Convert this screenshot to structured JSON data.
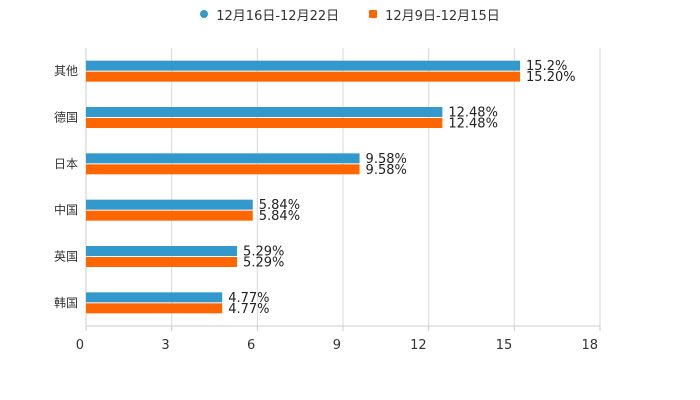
{
  "chart_data": {
    "type": "bar",
    "orientation": "horizontal",
    "categories": [
      "其他",
      "德国",
      "日本",
      "中国",
      "英国",
      "韩国"
    ],
    "series": [
      {
        "name": "12月16日-12月22日",
        "color": "#3399cc",
        "values": [
          15.2,
          12.48,
          9.58,
          5.84,
          5.29,
          4.77
        ],
        "labels": [
          "15.2%",
          "12.48%",
          "9.58%",
          "5.84%",
          "5.29%",
          "4.77%"
        ]
      },
      {
        "name": "12月9日-12月15日",
        "color": "#ff6600",
        "values": [
          15.2,
          12.48,
          9.58,
          5.84,
          5.29,
          4.77
        ],
        "labels": [
          "15.20%",
          "12.48%",
          "9.58%",
          "5.84%",
          "5.29%",
          "4.77%"
        ]
      }
    ],
    "xlim": [
      0,
      18
    ],
    "xticks": [
      "0",
      "3",
      "6",
      "9",
      "12",
      "15",
      "18"
    ],
    "grid": true,
    "legend_position": "top-center"
  }
}
